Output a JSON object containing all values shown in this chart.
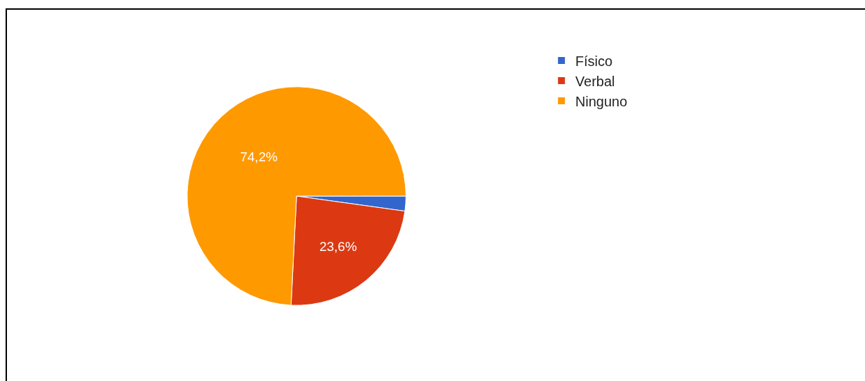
{
  "chart_data": {
    "type": "pie",
    "categories": [
      "Físico",
      "Verbal",
      "Ninguno"
    ],
    "values": [
      2.2,
      23.6,
      74.2
    ],
    "colors": [
      "#3366cc",
      "#dc3912",
      "#ff9900"
    ],
    "value_labels": [
      null,
      "23,6%",
      "74,2%"
    ],
    "legend": "top right"
  }
}
